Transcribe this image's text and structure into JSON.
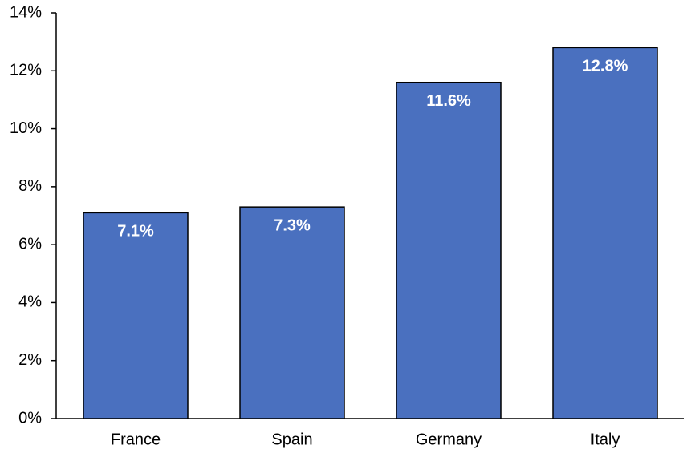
{
  "chart_data": {
    "type": "bar",
    "categories": [
      "France",
      "Spain",
      "Germany",
      "Italy"
    ],
    "values": [
      7.1,
      7.3,
      11.6,
      12.8
    ],
    "value_labels": [
      "7.1%",
      "7.3%",
      "11.6%",
      "12.8%"
    ],
    "color": "#4a70bf",
    "ylim": [
      0,
      14
    ],
    "yticks": [
      {
        "value": 0,
        "label": "0%"
      },
      {
        "value": 2,
        "label": "2%"
      },
      {
        "value": 4,
        "label": "4%"
      },
      {
        "value": 6,
        "label": "6%"
      },
      {
        "value": 8,
        "label": "8%"
      },
      {
        "value": 10,
        "label": "10%"
      },
      {
        "value": 12,
        "label": "12%"
      },
      {
        "value": 14,
        "label": "14%"
      }
    ],
    "grid": false
  }
}
